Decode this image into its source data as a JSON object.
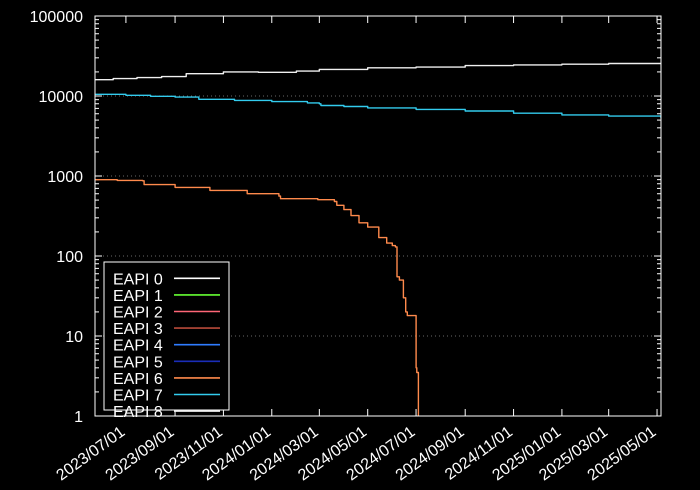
{
  "chart_data": {
    "type": "line",
    "title": "",
    "xlabel": "",
    "ylabel": "",
    "y_scale": "log",
    "ylim": [
      1,
      100000
    ],
    "xlim": [
      "2023-05-23",
      "2025-05-06"
    ],
    "y_ticks": [
      "1",
      "10",
      "100",
      "1000",
      "10000",
      "100000"
    ],
    "x_ticks": [
      "2023/07/01",
      "2023/09/01",
      "2023/11/01",
      "2024/01/01",
      "2024/03/01",
      "2024/05/01",
      "2024/07/01",
      "2024/09/01",
      "2024/11/01",
      "2025/01/01",
      "2025/03/01",
      "2025/05/01"
    ],
    "grid": "horizontal dotted",
    "legend_position": "bottom-left",
    "background": "#000000",
    "series": [
      {
        "name": "EAPI 0",
        "color": "#ffffff",
        "points": []
      },
      {
        "name": "EAPI 1",
        "color": "#66ff33",
        "points": []
      },
      {
        "name": "EAPI 2",
        "color": "#ff6677",
        "points": []
      },
      {
        "name": "EAPI 3",
        "color": "#b84a3a",
        "points": []
      },
      {
        "name": "EAPI 4",
        "color": "#2f7cff",
        "points": []
      },
      {
        "name": "EAPI 5",
        "color": "#1a2db8",
        "points": []
      },
      {
        "name": "EAPI 6",
        "color": "#ff8a4c",
        "points": [
          [
            "2023-05-23",
            900
          ],
          [
            "2023-06-20",
            880
          ],
          [
            "2023-07-22",
            870
          ],
          [
            "2023-07-24",
            780
          ],
          [
            "2023-09-01",
            720
          ],
          [
            "2023-10-15",
            660
          ],
          [
            "2023-12-01",
            600
          ],
          [
            "2024-01-10",
            560
          ],
          [
            "2024-01-12",
            520
          ],
          [
            "2024-02-28",
            505
          ],
          [
            "2024-03-20",
            480
          ],
          [
            "2024-03-23",
            430
          ],
          [
            "2024-04-01",
            380
          ],
          [
            "2024-04-10",
            320
          ],
          [
            "2024-04-20",
            260
          ],
          [
            "2024-05-01",
            230
          ],
          [
            "2024-05-15",
            170
          ],
          [
            "2024-05-25",
            145
          ],
          [
            "2024-06-01",
            135
          ],
          [
            "2024-06-05",
            130
          ],
          [
            "2024-06-07",
            55
          ],
          [
            "2024-06-10",
            50
          ],
          [
            "2024-06-15",
            30
          ],
          [
            "2024-06-18",
            20
          ],
          [
            "2024-06-20",
            18
          ],
          [
            "2024-06-28",
            18
          ],
          [
            "2024-07-01",
            4
          ],
          [
            "2024-07-02",
            3.5
          ],
          [
            "2024-07-04",
            1
          ]
        ]
      },
      {
        "name": "EAPI 7",
        "color": "#33ccee",
        "points": [
          [
            "2023-05-23",
            10500
          ],
          [
            "2023-07-01",
            10200
          ],
          [
            "2023-08-01",
            9900
          ],
          [
            "2023-09-01",
            9700
          ],
          [
            "2023-10-01",
            9100
          ],
          [
            "2023-11-15",
            8800
          ],
          [
            "2024-01-01",
            8500
          ],
          [
            "2024-02-15",
            8200
          ],
          [
            "2024-03-01",
            8000
          ],
          [
            "2024-03-03",
            7600
          ],
          [
            "2024-04-01",
            7400
          ],
          [
            "2024-05-01",
            7100
          ],
          [
            "2024-07-01",
            6800
          ],
          [
            "2024-09-01",
            6500
          ],
          [
            "2024-11-01",
            6100
          ],
          [
            "2025-01-01",
            5800
          ],
          [
            "2025-03-01",
            5600
          ],
          [
            "2025-05-06",
            5300
          ]
        ]
      },
      {
        "name": "EAPI 8",
        "color": "#f0f0f0",
        "points": [
          [
            "2023-05-23",
            16000
          ],
          [
            "2023-06-15",
            16500
          ],
          [
            "2023-07-15",
            17000
          ],
          [
            "2023-08-15",
            17500
          ],
          [
            "2023-09-15",
            19000
          ],
          [
            "2023-11-01",
            20000
          ],
          [
            "2023-12-15",
            19800
          ],
          [
            "2024-02-01",
            20500
          ],
          [
            "2024-03-01",
            21500
          ],
          [
            "2024-05-01",
            22500
          ],
          [
            "2024-07-01",
            23000
          ],
          [
            "2024-09-01",
            24000
          ],
          [
            "2024-11-01",
            24500
          ],
          [
            "2025-01-01",
            25000
          ],
          [
            "2025-03-01",
            25500
          ],
          [
            "2025-05-06",
            25000
          ]
        ]
      }
    ]
  }
}
